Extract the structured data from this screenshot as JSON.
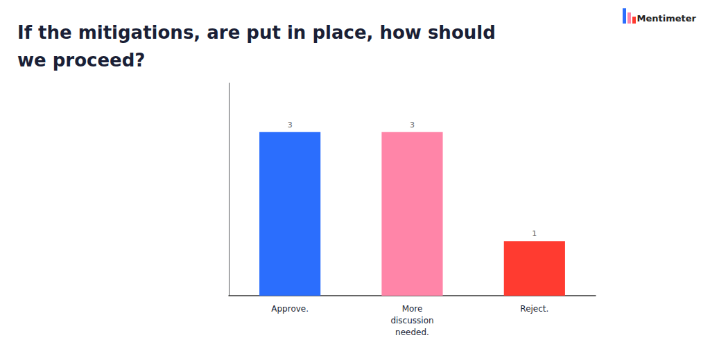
{
  "chart_data": {
    "type": "bar",
    "title": "If the mitigations, are put in place, how should\nwe proceed?",
    "annotations": [
      "Mentimeter"
    ],
    "categories": [
      "Approve.",
      "More\ndiscussion\nneeded.",
      "Reject."
    ],
    "values": [
      3,
      3,
      1
    ],
    "colors": [
      "#2B6EFD",
      "#FF85A8",
      "#FF3B30"
    ],
    "ylim": [
      0,
      3.9
    ],
    "grid": false,
    "data_labels": true,
    "tick_labels": "x"
  }
}
